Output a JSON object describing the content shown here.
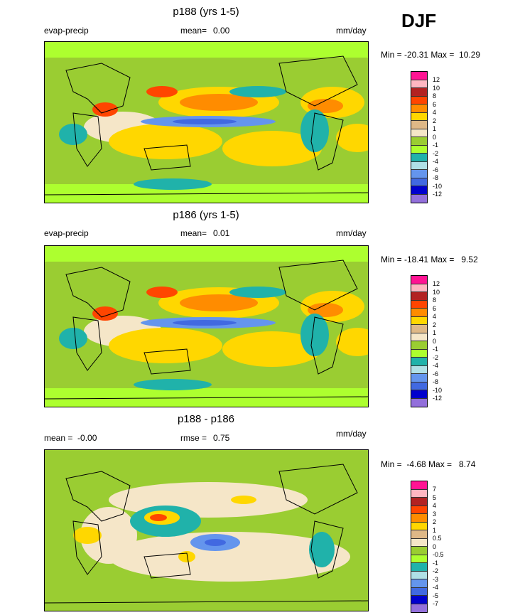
{
  "season": "DJF",
  "panels": [
    {
      "title": "p188 (yrs 1-5)",
      "left_label": "evap-precip",
      "stat_label": "mean=",
      "stat_value": "0.00",
      "units": "mm/day",
      "minmax_label": "Min = -20.31 Max =  10.29",
      "colorbar": {
        "labels": [
          "12",
          "10",
          "8",
          "6",
          "4",
          "2",
          "1",
          "0",
          "-1",
          "-2",
          "-4",
          "-6",
          "-8",
          "-10",
          "-12"
        ],
        "colors": [
          "#ff1493",
          "#ffb6c1",
          "#b22222",
          "#ff4500",
          "#ff8c00",
          "#ffd700",
          "#deb887",
          "#f5e6c8",
          "#9acd32",
          "#adff2f",
          "#20b2aa",
          "#b0e0e6",
          "#6495ed",
          "#4169e1",
          "#0000cd",
          "#9370db"
        ]
      }
    },
    {
      "title": "p186 (yrs 1-5)",
      "left_label": "evap-precip",
      "stat_label": "mean=",
      "stat_value": "0.01",
      "units": "mm/day",
      "minmax_label": "Min = -18.41 Max =   9.52",
      "colorbar": {
        "labels": [
          "12",
          "10",
          "8",
          "6",
          "4",
          "2",
          "1",
          "0",
          "-1",
          "-2",
          "-4",
          "-6",
          "-8",
          "-10",
          "-12"
        ],
        "colors": [
          "#ff1493",
          "#ffb6c1",
          "#b22222",
          "#ff4500",
          "#ff8c00",
          "#ffd700",
          "#deb887",
          "#f5e6c8",
          "#9acd32",
          "#adff2f",
          "#20b2aa",
          "#b0e0e6",
          "#6495ed",
          "#4169e1",
          "#0000cd",
          "#9370db"
        ]
      }
    },
    {
      "title": "p188 - p186",
      "left_label": "mean =  -0.00",
      "stat_label": "rmse =",
      "stat_value": "0.75",
      "units": "mm/day",
      "minmax_label": "Min =  -4.68 Max =   8.74",
      "colorbar": {
        "labels": [
          "7",
          "5",
          "4",
          "3",
          "2",
          "1",
          "0.5",
          "0",
          "-0.5",
          "-1",
          "-2",
          "-3",
          "-4",
          "-5",
          "-7"
        ],
        "colors": [
          "#ff1493",
          "#ffb6c1",
          "#b22222",
          "#ff4500",
          "#ff8c00",
          "#ffd700",
          "#deb887",
          "#f5e6c8",
          "#9acd32",
          "#adff2f",
          "#20b2aa",
          "#b0e0e6",
          "#6495ed",
          "#4169e1",
          "#0000cd",
          "#9370db"
        ]
      }
    }
  ],
  "chart_data": [
    {
      "type": "heatmap",
      "title": "p188 (yrs 1-5)",
      "variable": "evap-precip",
      "units": "mm/day",
      "mean": 0.0,
      "min": -20.31,
      "max": 10.29,
      "levels": [
        -12,
        -10,
        -8,
        -6,
        -4,
        -2,
        -1,
        0,
        1,
        2,
        4,
        6,
        8,
        10,
        12
      ]
    },
    {
      "type": "heatmap",
      "title": "p186 (yrs 1-5)",
      "variable": "evap-precip",
      "units": "mm/day",
      "mean": 0.01,
      "min": -18.41,
      "max": 9.52,
      "levels": [
        -12,
        -10,
        -8,
        -6,
        -4,
        -2,
        -1,
        0,
        1,
        2,
        4,
        6,
        8,
        10,
        12
      ]
    },
    {
      "type": "heatmap",
      "title": "p188 - p186",
      "units": "mm/day",
      "mean": -0.0,
      "rmse": 0.75,
      "min": -4.68,
      "max": 8.74,
      "levels": [
        -7,
        -5,
        -4,
        -3,
        -2,
        -1,
        -0.5,
        0,
        0.5,
        1,
        2,
        3,
        4,
        5,
        7
      ]
    }
  ]
}
